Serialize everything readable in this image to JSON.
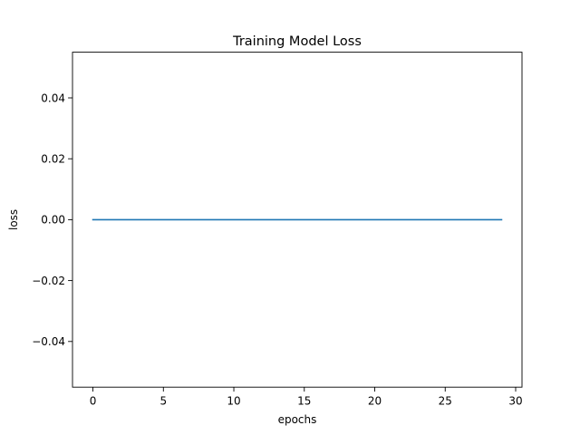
{
  "chart_data": {
    "type": "line",
    "title": "Training Model Loss",
    "xlabel": "epochs",
    "ylabel": "loss",
    "xlim": [
      -1.45,
      30.45
    ],
    "ylim": [
      -0.055,
      0.055
    ],
    "xticks": [
      0,
      5,
      10,
      15,
      20,
      25,
      30
    ],
    "yticks": [
      -0.04,
      -0.02,
      0.0,
      0.02,
      0.04
    ],
    "xtick_labels": [
      "0",
      "5",
      "10",
      "15",
      "20",
      "25",
      "30"
    ],
    "ytick_labels": [
      "−0.04",
      "−0.02",
      "0.00",
      "0.02",
      "0.04"
    ],
    "grid": false,
    "legend": "none",
    "series": [
      {
        "color": "#1f77b4",
        "x": [
          0,
          1,
          2,
          3,
          4,
          5,
          6,
          7,
          8,
          9,
          10,
          11,
          12,
          13,
          14,
          15,
          16,
          17,
          18,
          19,
          20,
          21,
          22,
          23,
          24,
          25,
          26,
          27,
          28,
          29
        ],
        "y": [
          0,
          0,
          0,
          0,
          0,
          0,
          0,
          0,
          0,
          0,
          0,
          0,
          0,
          0,
          0,
          0,
          0,
          0,
          0,
          0,
          0,
          0,
          0,
          0,
          0,
          0,
          0,
          0,
          0,
          0
        ]
      }
    ]
  }
}
